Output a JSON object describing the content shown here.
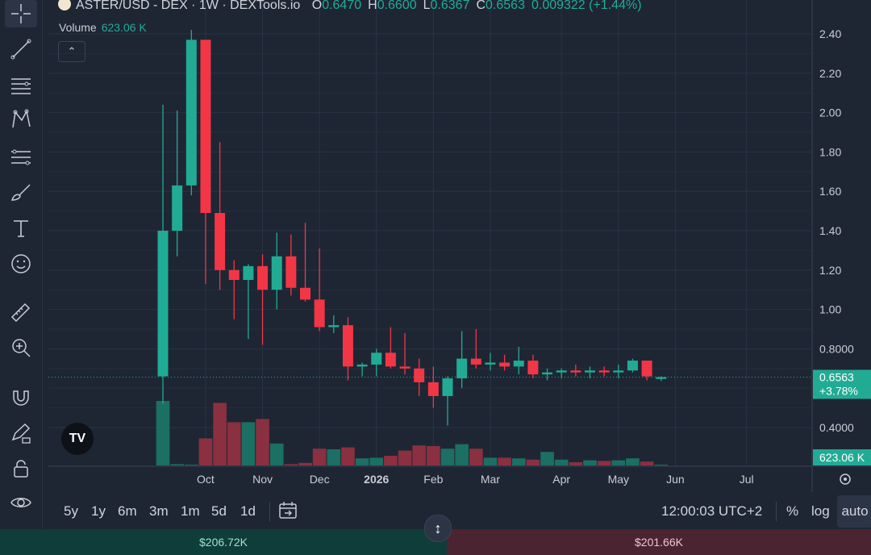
{
  "header": {
    "symbol": "ASTER/USD - DEX · 1W · DEXTools.io",
    "o_label": "O",
    "o_value": "0.6470",
    "h_label": "H",
    "h_value": "0.6600",
    "l_label": "L",
    "l_value": "0.6367",
    "c_label": "C",
    "c_value": "0.6563",
    "change": "0.009322 (+1.44%)"
  },
  "volume_legend": {
    "label": "Volume",
    "value": "623.06 K"
  },
  "price_badge": {
    "price": "0.6563",
    "change": "+3.78%"
  },
  "volume_badge": "623.06 K",
  "time_ranges": [
    "5y",
    "1y",
    "6m",
    "3m",
    "1m",
    "5d",
    "1d"
  ],
  "bottom_bar": {
    "clock": "12:00:03 UTC+2",
    "percent": "%",
    "log": "log",
    "auto": "auto"
  },
  "trade": {
    "buy": "$206.72K",
    "sell": "$201.66K"
  },
  "colors": {
    "up": "#22ab94",
    "down": "#f23645",
    "up_vol": "#1c6f63",
    "down_vol": "#8a3040",
    "bg": "#1e2634",
    "grid": "#2a3344"
  },
  "toolbar_icons": [
    "crosshair-icon",
    "trend-line-icon",
    "horizontal-lines-icon",
    "pattern-icon",
    "fib-icon",
    "brush-icon",
    "text-icon",
    "emoji-icon",
    "ruler-icon",
    "zoom-in-icon",
    "magnet-icon",
    "lock-drawing-icon",
    "lock-icon",
    "eye-icon"
  ],
  "chart_data": {
    "type": "candlestick",
    "title": "ASTER/USD - DEX · 1W · DEXTools.io",
    "x_tick_labels": [
      "Oct",
      "Nov",
      "Dec",
      "2026",
      "Feb",
      "Mar",
      "Apr",
      "May",
      "Jun",
      "Jul"
    ],
    "y_tick_labels": [
      "2.40",
      "2.20",
      "2.00",
      "1.80",
      "1.60",
      "1.40",
      "1.20",
      "1.00",
      "0.8000",
      "0.4000"
    ],
    "y_ticks": [
      2.4,
      2.2,
      2.0,
      1.8,
      1.6,
      1.4,
      1.2,
      1.0,
      0.8,
      0.4
    ],
    "ylim": [
      0.28,
      2.48
    ],
    "grid": true,
    "last_price": 0.6563,
    "candles": [
      {
        "o": 0.66,
        "h": 2.04,
        "l": 0.52,
        "c": 1.4
      },
      {
        "o": 1.4,
        "h": 2.01,
        "l": 1.27,
        "c": 1.63
      },
      {
        "o": 1.63,
        "h": 2.42,
        "l": 1.58,
        "c": 2.37
      },
      {
        "o": 2.37,
        "h": 2.37,
        "l": 1.13,
        "c": 1.49
      },
      {
        "o": 1.49,
        "h": 1.85,
        "l": 1.1,
        "c": 1.2
      },
      {
        "o": 1.2,
        "h": 1.25,
        "l": 0.95,
        "c": 1.15
      },
      {
        "o": 1.15,
        "h": 1.23,
        "l": 0.85,
        "c": 1.22
      },
      {
        "o": 1.22,
        "h": 1.28,
        "l": 0.82,
        "c": 1.1
      },
      {
        "o": 1.1,
        "h": 1.39,
        "l": 1.0,
        "c": 1.27
      },
      {
        "o": 1.27,
        "h": 1.38,
        "l": 1.07,
        "c": 1.11
      },
      {
        "o": 1.11,
        "h": 1.44,
        "l": 1.04,
        "c": 1.05
      },
      {
        "o": 1.05,
        "h": 1.31,
        "l": 0.89,
        "c": 0.91
      },
      {
        "o": 0.91,
        "h": 0.97,
        "l": 0.88,
        "c": 0.92
      },
      {
        "o": 0.92,
        "h": 0.96,
        "l": 0.64,
        "c": 0.71
      },
      {
        "o": 0.71,
        "h": 0.73,
        "l": 0.66,
        "c": 0.72
      },
      {
        "o": 0.72,
        "h": 0.8,
        "l": 0.66,
        "c": 0.78
      },
      {
        "o": 0.78,
        "h": 0.91,
        "l": 0.7,
        "c": 0.71
      },
      {
        "o": 0.71,
        "h": 0.88,
        "l": 0.67,
        "c": 0.7
      },
      {
        "o": 0.7,
        "h": 0.75,
        "l": 0.56,
        "c": 0.63
      },
      {
        "o": 0.63,
        "h": 0.71,
        "l": 0.5,
        "c": 0.56
      },
      {
        "o": 0.56,
        "h": 0.66,
        "l": 0.41,
        "c": 0.65
      },
      {
        "o": 0.65,
        "h": 0.89,
        "l": 0.6,
        "c": 0.75
      },
      {
        "o": 0.75,
        "h": 0.9,
        "l": 0.7,
        "c": 0.72
      },
      {
        "o": 0.72,
        "h": 0.78,
        "l": 0.69,
        "c": 0.73
      },
      {
        "o": 0.73,
        "h": 0.77,
        "l": 0.69,
        "c": 0.71
      },
      {
        "o": 0.71,
        "h": 0.81,
        "l": 0.67,
        "c": 0.74
      },
      {
        "o": 0.74,
        "h": 0.77,
        "l": 0.65,
        "c": 0.67
      },
      {
        "o": 0.67,
        "h": 0.7,
        "l": 0.64,
        "c": 0.68
      },
      {
        "o": 0.68,
        "h": 0.7,
        "l": 0.65,
        "c": 0.69
      },
      {
        "o": 0.69,
        "h": 0.72,
        "l": 0.66,
        "c": 0.68
      },
      {
        "o": 0.68,
        "h": 0.71,
        "l": 0.65,
        "c": 0.69
      },
      {
        "o": 0.69,
        "h": 0.71,
        "l": 0.66,
        "c": 0.68
      },
      {
        "o": 0.68,
        "h": 0.72,
        "l": 0.65,
        "c": 0.69
      },
      {
        "o": 0.69,
        "h": 0.75,
        "l": 0.68,
        "c": 0.74
      },
      {
        "o": 0.74,
        "h": 0.74,
        "l": 0.64,
        "c": 0.66
      },
      {
        "o": 0.647,
        "h": 0.66,
        "l": 0.6367,
        "c": 0.6563
      }
    ],
    "volume_max": 100,
    "volumes": [
      100,
      2,
      1,
      42,
      97,
      67,
      67,
      72,
      34,
      2,
      4,
      26,
      25,
      28,
      11,
      12,
      15,
      23,
      31,
      30,
      26,
      33,
      26,
      12,
      12,
      11,
      9,
      21,
      9,
      5,
      8,
      7,
      8,
      11,
      6,
      1
    ]
  }
}
